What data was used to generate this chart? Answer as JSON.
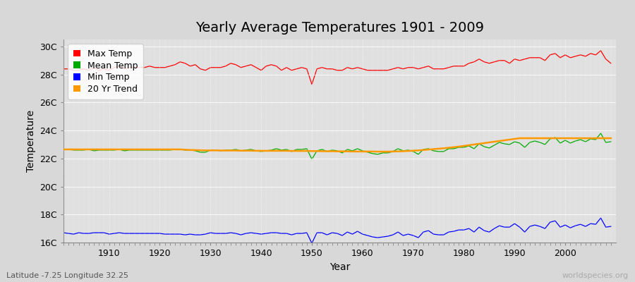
{
  "title": "Yearly Average Temperatures 1901 - 2009",
  "xlabel": "Year",
  "ylabel": "Temperature",
  "subtitle_lat": "Latitude -7.25 Longitude 32.25",
  "watermark": "worldspecies.org",
  "years": [
    1901,
    1902,
    1903,
    1904,
    1905,
    1906,
    1907,
    1908,
    1909,
    1910,
    1911,
    1912,
    1913,
    1914,
    1915,
    1916,
    1917,
    1918,
    1919,
    1920,
    1921,
    1922,
    1923,
    1924,
    1925,
    1926,
    1927,
    1928,
    1929,
    1930,
    1931,
    1932,
    1933,
    1934,
    1935,
    1936,
    1937,
    1938,
    1939,
    1940,
    1941,
    1942,
    1943,
    1944,
    1945,
    1946,
    1947,
    1948,
    1949,
    1950,
    1951,
    1952,
    1953,
    1954,
    1955,
    1956,
    1957,
    1958,
    1959,
    1960,
    1961,
    1962,
    1963,
    1964,
    1965,
    1966,
    1967,
    1968,
    1969,
    1970,
    1971,
    1972,
    1973,
    1974,
    1975,
    1976,
    1977,
    1978,
    1979,
    1980,
    1981,
    1982,
    1983,
    1984,
    1985,
    1986,
    1987,
    1988,
    1989,
    1990,
    1991,
    1992,
    1993,
    1994,
    1995,
    1996,
    1997,
    1998,
    1999,
    2000,
    2001,
    2002,
    2003,
    2004,
    2005,
    2006,
    2007,
    2008,
    2009
  ],
  "max_temp": [
    28.4,
    28.4,
    28.3,
    28.3,
    28.4,
    28.3,
    28.5,
    28.3,
    28.4,
    28.3,
    28.5,
    28.6,
    28.4,
    28.5,
    28.5,
    28.5,
    28.5,
    28.6,
    28.5,
    28.5,
    28.5,
    28.6,
    28.7,
    28.9,
    28.8,
    28.6,
    28.7,
    28.4,
    28.3,
    28.5,
    28.5,
    28.5,
    28.6,
    28.8,
    28.7,
    28.5,
    28.6,
    28.7,
    28.5,
    28.3,
    28.6,
    28.7,
    28.6,
    28.3,
    28.5,
    28.3,
    28.4,
    28.5,
    28.4,
    27.3,
    28.4,
    28.5,
    28.4,
    28.4,
    28.3,
    28.3,
    28.5,
    28.4,
    28.5,
    28.4,
    28.3,
    28.3,
    28.3,
    28.3,
    28.3,
    28.4,
    28.5,
    28.4,
    28.5,
    28.5,
    28.4,
    28.5,
    28.6,
    28.4,
    28.4,
    28.4,
    28.5,
    28.6,
    28.6,
    28.6,
    28.8,
    28.9,
    29.1,
    28.9,
    28.8,
    28.9,
    29.0,
    29.0,
    28.8,
    29.1,
    29.0,
    29.1,
    29.2,
    29.2,
    29.2,
    29.0,
    29.4,
    29.5,
    29.2,
    29.4,
    29.2,
    29.3,
    29.4,
    29.3,
    29.5,
    29.4,
    29.7,
    29.1,
    28.8
  ],
  "mean_temp": [
    22.65,
    22.65,
    22.6,
    22.6,
    22.6,
    22.65,
    22.55,
    22.6,
    22.6,
    22.6,
    22.6,
    22.65,
    22.55,
    22.6,
    22.6,
    22.6,
    22.6,
    22.6,
    22.6,
    22.6,
    22.6,
    22.6,
    22.65,
    22.65,
    22.6,
    22.6,
    22.55,
    22.45,
    22.45,
    22.6,
    22.6,
    22.55,
    22.6,
    22.6,
    22.65,
    22.55,
    22.6,
    22.65,
    22.55,
    22.5,
    22.55,
    22.6,
    22.7,
    22.6,
    22.65,
    22.5,
    22.65,
    22.65,
    22.7,
    21.95,
    22.55,
    22.65,
    22.5,
    22.6,
    22.55,
    22.4,
    22.65,
    22.55,
    22.7,
    22.55,
    22.45,
    22.35,
    22.3,
    22.4,
    22.4,
    22.5,
    22.7,
    22.55,
    22.6,
    22.5,
    22.3,
    22.65,
    22.7,
    22.55,
    22.5,
    22.5,
    22.7,
    22.7,
    22.8,
    22.8,
    22.9,
    22.7,
    23.05,
    22.85,
    22.75,
    22.95,
    23.15,
    23.05,
    23.0,
    23.2,
    23.1,
    22.8,
    23.15,
    23.25,
    23.15,
    23.0,
    23.4,
    23.5,
    23.1,
    23.3,
    23.1,
    23.25,
    23.35,
    23.2,
    23.4,
    23.35,
    23.8,
    23.15,
    23.2
  ],
  "min_temp": [
    16.7,
    16.65,
    16.6,
    16.7,
    16.65,
    16.65,
    16.7,
    16.7,
    16.7,
    16.6,
    16.65,
    16.7,
    16.65,
    16.65,
    16.65,
    16.65,
    16.65,
    16.65,
    16.65,
    16.65,
    16.6,
    16.6,
    16.6,
    16.6,
    16.55,
    16.6,
    16.55,
    16.55,
    16.6,
    16.7,
    16.65,
    16.65,
    16.65,
    16.7,
    16.65,
    16.55,
    16.65,
    16.7,
    16.65,
    16.6,
    16.65,
    16.7,
    16.7,
    16.65,
    16.65,
    16.55,
    16.65,
    16.65,
    16.7,
    15.95,
    16.7,
    16.7,
    16.55,
    16.7,
    16.65,
    16.5,
    16.75,
    16.6,
    16.8,
    16.6,
    16.5,
    16.4,
    16.35,
    16.4,
    16.45,
    16.55,
    16.75,
    16.5,
    16.6,
    16.5,
    16.35,
    16.75,
    16.85,
    16.6,
    16.55,
    16.55,
    16.75,
    16.8,
    16.9,
    16.9,
    17.0,
    16.75,
    17.1,
    16.85,
    16.75,
    17.0,
    17.2,
    17.1,
    17.1,
    17.35,
    17.1,
    16.75,
    17.15,
    17.25,
    17.15,
    17.0,
    17.45,
    17.55,
    17.1,
    17.25,
    17.05,
    17.2,
    17.3,
    17.15,
    17.35,
    17.3,
    17.75,
    17.1,
    17.15
  ],
  "trend_20yr": [
    22.65,
    22.65,
    22.65,
    22.65,
    22.65,
    22.65,
    22.65,
    22.65,
    22.65,
    22.65,
    22.65,
    22.65,
    22.65,
    22.65,
    22.65,
    22.65,
    22.65,
    22.65,
    22.65,
    22.65,
    22.65,
    22.65,
    22.65,
    22.65,
    22.63,
    22.61,
    22.6,
    22.59,
    22.58,
    22.58,
    22.58,
    22.57,
    22.57,
    22.57,
    22.57,
    22.56,
    22.56,
    22.56,
    22.55,
    22.55,
    22.55,
    22.55,
    22.55,
    22.55,
    22.55,
    22.54,
    22.54,
    22.54,
    22.54,
    22.53,
    22.53,
    22.52,
    22.52,
    22.52,
    22.51,
    22.51,
    22.51,
    22.5,
    22.5,
    22.5,
    22.5,
    22.5,
    22.49,
    22.49,
    22.49,
    22.5,
    22.51,
    22.52,
    22.54,
    22.56,
    22.58,
    22.61,
    22.64,
    22.67,
    22.7,
    22.73,
    22.77,
    22.81,
    22.85,
    22.9,
    22.95,
    23.0,
    23.05,
    23.1,
    23.15,
    23.2,
    23.25,
    23.3,
    23.35,
    23.4,
    23.45,
    23.45,
    23.45,
    23.45,
    23.45,
    23.45,
    23.45,
    23.45,
    23.45,
    23.45,
    23.45,
    23.45,
    23.45,
    23.45,
    23.45,
    23.45,
    23.45,
    23.45,
    23.45
  ],
  "ylim": [
    16.0,
    30.5
  ],
  "yticks": [
    16,
    18,
    20,
    22,
    24,
    26,
    28,
    30
  ],
  "ytick_labels": [
    "16C",
    "18C",
    "20C",
    "22C",
    "24C",
    "26C",
    "28C",
    "30C"
  ],
  "xlim": [
    1901,
    2010
  ],
  "xticks": [
    1910,
    1920,
    1930,
    1940,
    1950,
    1960,
    1970,
    1980,
    1990,
    2000
  ],
  "bg_color": "#d8d8d8",
  "plot_bg_color": "#e0e0e0",
  "grid_color": "#ffffff",
  "max_color": "#ff0000",
  "mean_color": "#00aa00",
  "min_color": "#0000ff",
  "trend_color": "#ff9900",
  "title_fontsize": 14,
  "axis_fontsize": 10,
  "tick_fontsize": 9,
  "legend_fontsize": 9
}
